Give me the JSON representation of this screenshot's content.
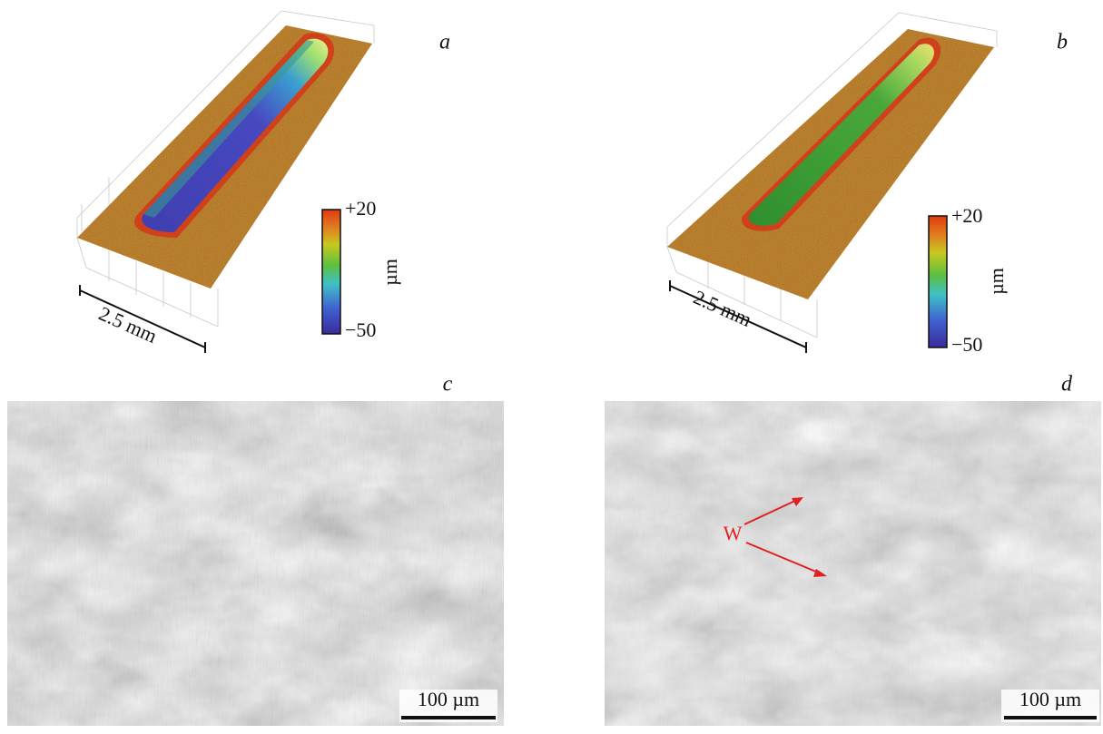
{
  "panels": [
    {
      "label": "a",
      "scale": "2.5 mm",
      "colorbar_max": "+20",
      "colorbar_min": "−50",
      "unit": "µm"
    },
    {
      "label": "b",
      "scale": "2.5 mm",
      "colorbar_max": "+20",
      "colorbar_min": "−50",
      "unit": "µm"
    },
    {
      "label": "c",
      "scale_bar": "100 µm"
    },
    {
      "label": "d",
      "scale_bar": "100 µm",
      "annotation": "W"
    }
  ]
}
